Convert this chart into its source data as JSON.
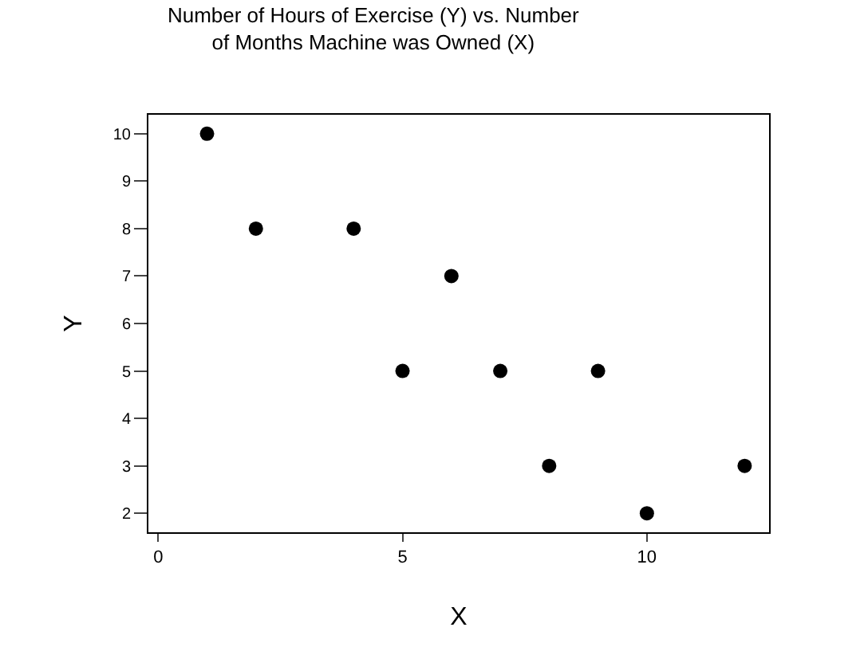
{
  "chart_data": {
    "type": "scatter",
    "title": "Number of Hours of Exercise (Y) vs. Number\nof Months Machine was Owned (X)",
    "xlabel": "X",
    "ylabel": "Y",
    "x": [
      1,
      2,
      4,
      5,
      6,
      7,
      8,
      9,
      10,
      12
    ],
    "values": [
      10,
      8,
      8,
      5,
      7,
      5,
      3,
      5,
      2,
      3
    ],
    "color": "#000000",
    "marker": "circle",
    "grid": false,
    "xlim": [
      -0.2,
      12.5
    ],
    "xticks": [
      0,
      5,
      10
    ],
    "ylim": [
      1.6,
      10.4
    ],
    "yticks": [
      2,
      3,
      4,
      5,
      6,
      7,
      8,
      9,
      10
    ]
  }
}
